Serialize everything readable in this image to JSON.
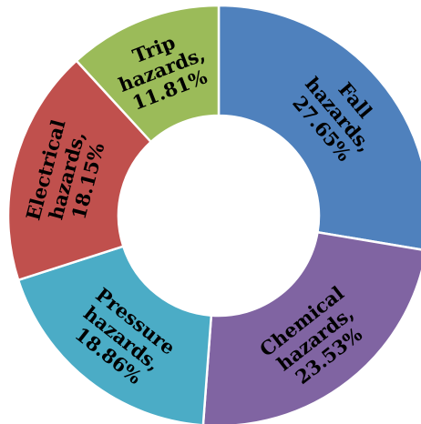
{
  "chart_data": {
    "type": "pie",
    "variant": "donut",
    "categories": [
      "Fall hazards",
      "Chemical hazards",
      "Pressure hazards",
      "Electrical hazards",
      "Trip hazards"
    ],
    "values": [
      27.65,
      23.53,
      18.86,
      18.15,
      11.81
    ],
    "labels": [
      [
        "Fall",
        "hazards,",
        "27.65%"
      ],
      [
        "Chemical",
        "hazards,",
        "23.53%"
      ],
      [
        "Pressure",
        "hazards,",
        "18.86%"
      ],
      [
        "Electrical",
        "hazards,",
        "18.15%"
      ],
      [
        "Trip",
        "hazards,",
        "11.81%"
      ]
    ],
    "colors": [
      "#4F81BD",
      "#8064A2",
      "#4BACC6",
      "#C0504D",
      "#9BBB59"
    ],
    "start": "12 o'clock",
    "direction": "clockwise",
    "legend": "none"
  }
}
